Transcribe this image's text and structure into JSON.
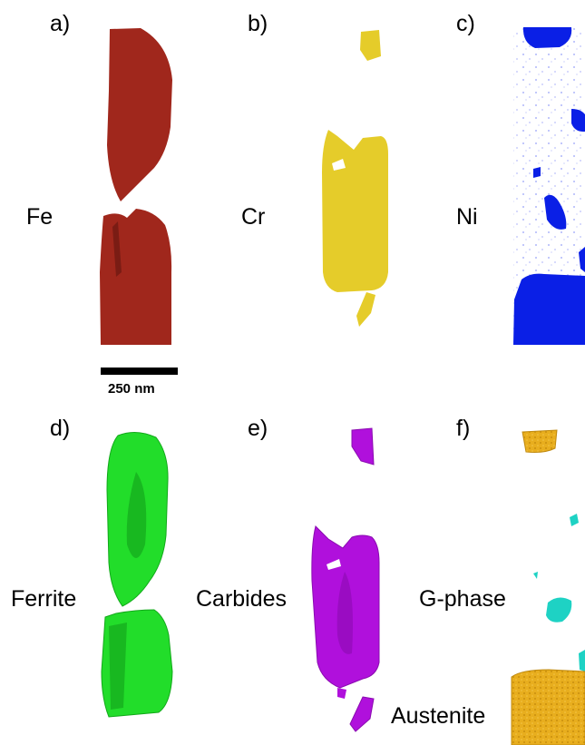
{
  "panels": {
    "a": {
      "label": "a)",
      "element": "Fe",
      "color": "#a0271c"
    },
    "b": {
      "label": "b)",
      "element": "Cr",
      "color": "#e5cc2a"
    },
    "c": {
      "label": "c)",
      "element": "Ni",
      "color": "#0a1fe6"
    },
    "d": {
      "label": "d)",
      "phase": "Ferrite",
      "color": "#22dd2a"
    },
    "e": {
      "label": "e)",
      "phase": "Carbides",
      "color": "#b010dc"
    },
    "f": {
      "label": "f)",
      "phase": "G-phase",
      "color": "#1ed2c4"
    }
  },
  "austenite": {
    "label": "Austenite",
    "color": "#e8ae1e"
  },
  "scale_bar": {
    "label": "250 nm"
  }
}
